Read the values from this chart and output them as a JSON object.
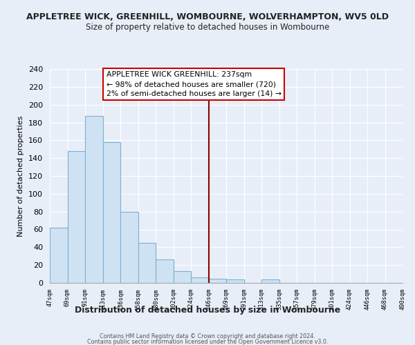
{
  "title": "APPLETREE WICK, GREENHILL, WOMBOURNE, WOLVERHAMPTON, WV5 0LD",
  "subtitle": "Size of property relative to detached houses in Wombourne",
  "xlabel": "Distribution of detached houses by size in Wombourne",
  "ylabel": "Number of detached properties",
  "bar_color": "#cfe2f3",
  "bar_edge_color": "#7ab0d4",
  "bin_labels": [
    "47sqm",
    "69sqm",
    "91sqm",
    "113sqm",
    "136sqm",
    "158sqm",
    "180sqm",
    "202sqm",
    "224sqm",
    "246sqm",
    "269sqm",
    "291sqm",
    "313sqm",
    "335sqm",
    "357sqm",
    "379sqm",
    "401sqm",
    "424sqm",
    "446sqm",
    "468sqm",
    "490sqm"
  ],
  "values": [
    62,
    148,
    187,
    158,
    80,
    45,
    26,
    13,
    6,
    5,
    4,
    0,
    4,
    0,
    0,
    0,
    0,
    0,
    0,
    0
  ],
  "ylim": [
    0,
    240
  ],
  "yticks": [
    0,
    20,
    40,
    60,
    80,
    100,
    120,
    140,
    160,
    180,
    200,
    220,
    240
  ],
  "vline_pos": 9,
  "vline_color": "#8b0000",
  "annotation_title": "APPLETREE WICK GREENHILL: 237sqm",
  "annotation_line1": "← 98% of detached houses are smaller (720)",
  "annotation_line2": "2% of semi-detached houses are larger (14) →",
  "footer1": "Contains HM Land Registry data © Crown copyright and database right 2024.",
  "footer2": "Contains public sector information licensed under the Open Government Licence v3.0.",
  "bg_color": "#e8eef8",
  "plot_bg_color": "#e8eef8",
  "grid_color": "#ffffff",
  "spine_color": "#aaaaaa"
}
